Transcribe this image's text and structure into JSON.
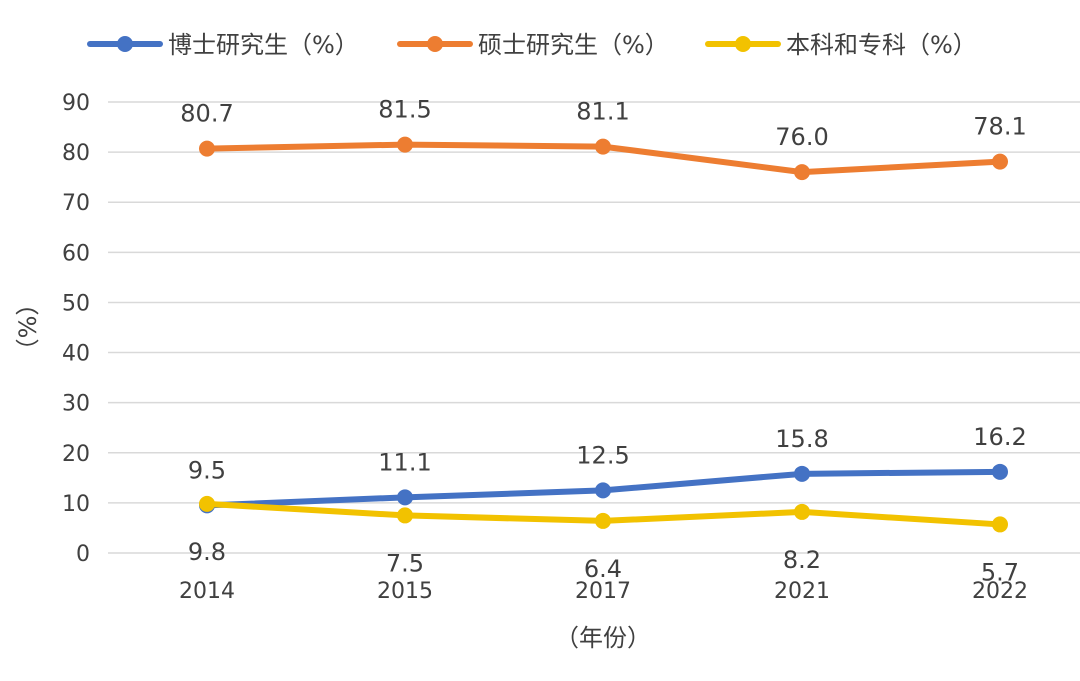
{
  "chart_data": {
    "type": "line",
    "categories": [
      "2014",
      "2015",
      "2017",
      "2021",
      "2022"
    ],
    "series": [
      {
        "name": "博士研究生（%）",
        "color": "#4472C4",
        "values": [
          9.5,
          11.1,
          12.5,
          15.8,
          16.2
        ]
      },
      {
        "name": "硕士研究生（%）",
        "color": "#ED7D31",
        "values": [
          80.7,
          81.5,
          81.1,
          76.0,
          78.1
        ]
      },
      {
        "name": "本科和专科（%）",
        "color": "#F2C200",
        "values": [
          9.8,
          7.5,
          6.4,
          8.2,
          5.7
        ]
      }
    ],
    "xlabel": "（年份）",
    "ylabel": "（%）",
    "ylim": [
      0,
      90
    ],
    "yticks": [
      0,
      10,
      20,
      30,
      40,
      50,
      60,
      70,
      80,
      90
    ],
    "grid": true,
    "legend_position": "top"
  }
}
